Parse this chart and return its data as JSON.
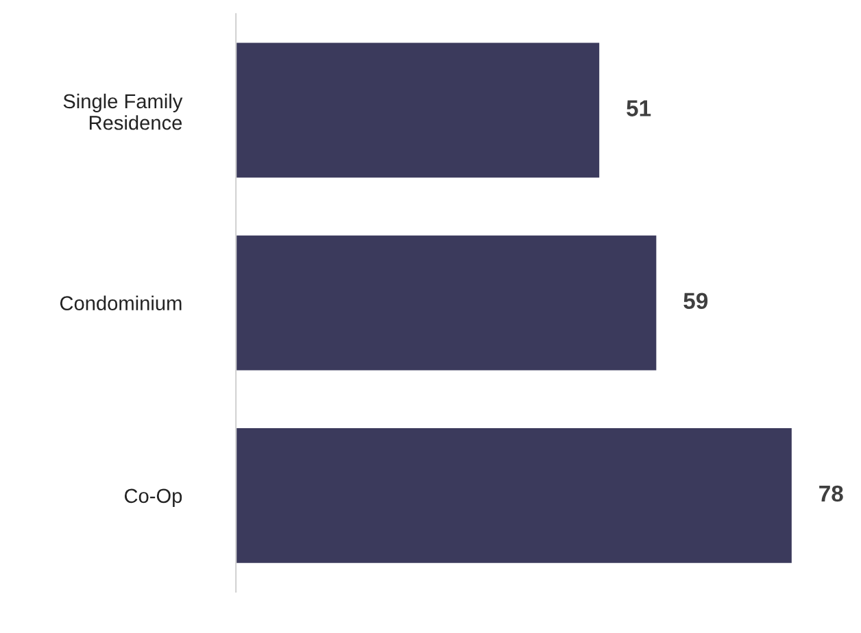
{
  "chart_data": {
    "type": "bar",
    "orientation": "horizontal",
    "categories": [
      "Single Family\nResidence",
      "Condominium",
      "Co-Op"
    ],
    "values": [
      51,
      59,
      78
    ],
    "color": "#3b3a5c",
    "data_labels": true,
    "grid": false,
    "legend": false
  }
}
